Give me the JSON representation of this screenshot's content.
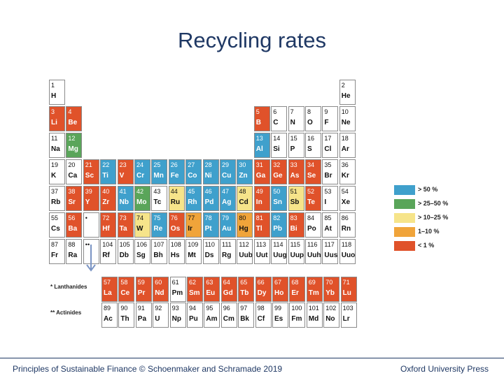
{
  "title": "Recycling rates",
  "colors": {
    ">50%": "#3fa0cc",
    "25-50%": "#5aa55a",
    "10-25%": "#f6e48a",
    "1-10%": "#f0a43a",
    "<1%": "#e0522a",
    "none": "#ffffff"
  },
  "legend": [
    {
      "key": ">50%",
      "label": "> 50 %"
    },
    {
      "key": "25-50%",
      "label": "> 25–50 %"
    },
    {
      "key": "10-25%",
      "label": "> 10–25 %"
    },
    {
      "key": "1-10%",
      "label": "1–10 %"
    },
    {
      "key": "<1%",
      "label": "< 1 %"
    }
  ],
  "main_rows": [
    [
      [
        "1",
        "H",
        "none"
      ],
      null,
      null,
      null,
      null,
      null,
      null,
      null,
      null,
      null,
      null,
      null,
      null,
      null,
      null,
      null,
      null,
      [
        "2",
        "He",
        "none"
      ]
    ],
    [
      [
        "3",
        "Li",
        "<1%"
      ],
      [
        "4",
        "Be",
        "<1%"
      ],
      null,
      null,
      null,
      null,
      null,
      null,
      null,
      null,
      null,
      null,
      [
        "5",
        "B",
        "<1%"
      ],
      [
        "6",
        "C",
        "none"
      ],
      [
        "7",
        "N",
        "none"
      ],
      [
        "8",
        "O",
        "none"
      ],
      [
        "9",
        "F",
        "none"
      ],
      [
        "10",
        "Ne",
        "none"
      ]
    ],
    [
      [
        "11",
        "Na",
        "none"
      ],
      [
        "12",
        "Mg",
        "25-50%"
      ],
      null,
      null,
      null,
      null,
      null,
      null,
      null,
      null,
      null,
      null,
      [
        "13",
        "Al",
        ">50%"
      ],
      [
        "14",
        "Si",
        "none"
      ],
      [
        "15",
        "P",
        "none"
      ],
      [
        "16",
        "S",
        "none"
      ],
      [
        "17",
        "Cl",
        "none"
      ],
      [
        "18",
        "Ar",
        "none"
      ]
    ],
    [
      [
        "19",
        "K",
        "none"
      ],
      [
        "20",
        "Ca",
        "none"
      ],
      [
        "21",
        "Sc",
        "<1%"
      ],
      [
        "22",
        "Ti",
        ">50%"
      ],
      [
        "23",
        "V",
        "<1%"
      ],
      [
        "24",
        "Cr",
        ">50%"
      ],
      [
        "25",
        "Mn",
        ">50%"
      ],
      [
        "26",
        "Fe",
        ">50%"
      ],
      [
        "27",
        "Co",
        ">50%"
      ],
      [
        "28",
        "Ni",
        ">50%"
      ],
      [
        "29",
        "Cu",
        ">50%"
      ],
      [
        "30",
        "Zn",
        ">50%"
      ],
      [
        "31",
        "Ga",
        "<1%"
      ],
      [
        "32",
        "Ge",
        "<1%"
      ],
      [
        "33",
        "As",
        "<1%"
      ],
      [
        "34",
        "Se",
        "<1%"
      ],
      [
        "35",
        "Br",
        "none"
      ],
      [
        "36",
        "Kr",
        "none"
      ]
    ],
    [
      [
        "37",
        "Rb",
        "none"
      ],
      [
        "38",
        "Sr",
        "<1%"
      ],
      [
        "39",
        "Y",
        "<1%"
      ],
      [
        "40",
        "Zr",
        "<1%"
      ],
      [
        "41",
        "Nb",
        ">50%"
      ],
      [
        "42",
        "Mo",
        "25-50%"
      ],
      [
        "43",
        "Tc",
        "none"
      ],
      [
        "44",
        "Ru",
        "10-25%"
      ],
      [
        "45",
        "Rh",
        ">50%"
      ],
      [
        "46",
        "Pd",
        ">50%"
      ],
      [
        "47",
        "Ag",
        ">50%"
      ],
      [
        "48",
        "Cd",
        "10-25%"
      ],
      [
        "49",
        "In",
        "<1%"
      ],
      [
        "50",
        "Sn",
        ">50%"
      ],
      [
        "51",
        "Sb",
        "10-25%"
      ],
      [
        "52",
        "Te",
        "<1%"
      ],
      [
        "53",
        "I",
        "none"
      ],
      [
        "54",
        "Xe",
        "none"
      ]
    ],
    [
      [
        "55",
        "Cs",
        "none"
      ],
      [
        "56",
        "Ba",
        "<1%"
      ],
      [
        "•",
        "",
        "none"
      ],
      [
        "72",
        "Hf",
        "<1%"
      ],
      [
        "73",
        "Ta",
        "<1%"
      ],
      [
        "74",
        "W",
        "10-25%"
      ],
      [
        "75",
        "Re",
        ">50%"
      ],
      [
        "76",
        "Os",
        "<1%"
      ],
      [
        "77",
        "Ir",
        "1-10%"
      ],
      [
        "78",
        "Pt",
        ">50%"
      ],
      [
        "79",
        "Au",
        ">50%"
      ],
      [
        "80",
        "Hg",
        "1-10%"
      ],
      [
        "81",
        "Tl",
        "<1%"
      ],
      [
        "82",
        "Pb",
        ">50%"
      ],
      [
        "83",
        "Bi",
        "<1%"
      ],
      [
        "84",
        "Po",
        "none"
      ],
      [
        "85",
        "At",
        "none"
      ],
      [
        "86",
        "Rn",
        "none"
      ]
    ],
    [
      [
        "87",
        "Fr",
        "none"
      ],
      [
        "88",
        "Ra",
        "none"
      ],
      [
        "••",
        "",
        "none"
      ],
      [
        "104",
        "Rf",
        "none"
      ],
      [
        "105",
        "Db",
        "none"
      ],
      [
        "106",
        "Sg",
        "none"
      ],
      [
        "107",
        "Bh",
        "none"
      ],
      [
        "108",
        "Hs",
        "none"
      ],
      [
        "109",
        "Mt",
        "none"
      ],
      [
        "110",
        "Ds",
        "none"
      ],
      [
        "111",
        "Rg",
        "none"
      ],
      [
        "112",
        "Uub",
        "none"
      ],
      [
        "113",
        "Uut",
        "none"
      ],
      [
        "114",
        "Uug",
        "none"
      ],
      [
        "115",
        "Uup",
        "none"
      ],
      [
        "116",
        "Uuh",
        "none"
      ],
      [
        "117",
        "Uus",
        "none"
      ],
      [
        "118",
        "Uuo",
        "none"
      ]
    ]
  ],
  "lanthanides_label": "* Lanthanides",
  "actinides_label": "** Actinides",
  "lanthanides": [
    [
      "57",
      "La",
      "<1%"
    ],
    [
      "58",
      "Ce",
      "<1%"
    ],
    [
      "59",
      "Pr",
      "<1%"
    ],
    [
      "60",
      "Nd",
      "<1%"
    ],
    [
      "61",
      "Pm",
      "none"
    ],
    [
      "62",
      "Sm",
      "<1%"
    ],
    [
      "63",
      "Eu",
      "<1%"
    ],
    [
      "64",
      "Gd",
      "<1%"
    ],
    [
      "65",
      "Tb",
      "<1%"
    ],
    [
      "66",
      "Dy",
      "<1%"
    ],
    [
      "67",
      "Ho",
      "<1%"
    ],
    [
      "68",
      "Er",
      "<1%"
    ],
    [
      "69",
      "Tm",
      "<1%"
    ],
    [
      "70",
      "Yb",
      "<1%"
    ],
    [
      "71",
      "Lu",
      "<1%"
    ]
  ],
  "actinides": [
    [
      "89",
      "Ac",
      "none"
    ],
    [
      "90",
      "Th",
      "none"
    ],
    [
      "91",
      "Pa",
      "none"
    ],
    [
      "92",
      "U",
      "none"
    ],
    [
      "93",
      "Np",
      "none"
    ],
    [
      "94",
      "Pu",
      "none"
    ],
    [
      "95",
      "Am",
      "none"
    ],
    [
      "96",
      "Cm",
      "none"
    ],
    [
      "97",
      "Bk",
      "none"
    ],
    [
      "98",
      "Cf",
      "none"
    ],
    [
      "99",
      "Es",
      "none"
    ],
    [
      "100",
      "Fm",
      "none"
    ],
    [
      "101",
      "Md",
      "none"
    ],
    [
      "102",
      "No",
      "none"
    ],
    [
      "103",
      "Lr",
      "none"
    ]
  ],
  "footer": {
    "left": "Principles of Sustainable Finance © Schoenmaker and Schramade 2019",
    "right": "Oxford University Press"
  }
}
